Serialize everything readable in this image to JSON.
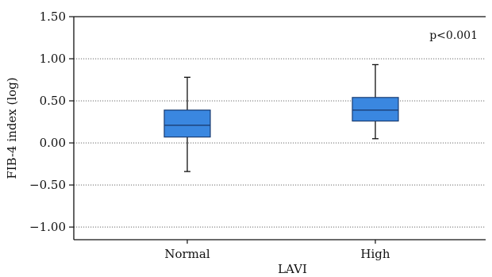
{
  "chart_data": {
    "type": "box",
    "ylabel": "FIB-4 index (log)",
    "xlabel": "LAVI",
    "annotation": "p<0.001",
    "ylim": [
      -1.15,
      1.5
    ],
    "yticks": [
      1.5,
      1.0,
      0.5,
      0.0,
      -0.5,
      -1.0
    ],
    "ytick_labels": [
      "1.50",
      "1.00",
      "0.50",
      "0.00",
      "−0.50",
      "−1.00"
    ],
    "grid": "horizontal-dotted",
    "categories": [
      "Normal",
      "High"
    ],
    "boxes": [
      {
        "category": "Normal",
        "whisker_low": -0.34,
        "q1": 0.07,
        "median": 0.21,
        "q3": 0.39,
        "whisker_high": 0.78
      },
      {
        "category": "High",
        "whisker_low": 0.05,
        "q1": 0.26,
        "median": 0.39,
        "q3": 0.54,
        "whisker_high": 0.93
      }
    ],
    "box_color": "#3a87e0",
    "box_edge_color": "#1a3d73"
  }
}
